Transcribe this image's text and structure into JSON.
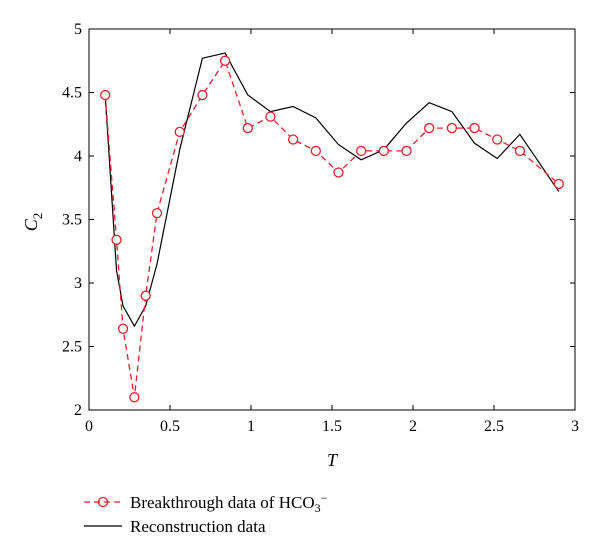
{
  "chart_data": {
    "type": "line",
    "title": "",
    "xlabel": "T",
    "ylabel": "C",
    "ylabel_subscript": "2",
    "xlim": [
      0,
      3
    ],
    "ylim": [
      2,
      5
    ],
    "x_ticks": [
      0,
      0.5,
      1,
      1.5,
      2,
      2.5,
      3
    ],
    "x_tick_labels": [
      "0",
      "0.5",
      "1",
      "1.5",
      "2",
      "2.5",
      "3"
    ],
    "y_ticks": [
      2,
      2.5,
      3,
      3.5,
      4,
      4.5,
      5
    ],
    "y_tick_labels": [
      "2",
      "2.5",
      "3",
      "3.5",
      "4",
      "4.5",
      "5"
    ],
    "grid": false,
    "legend_placement": "bottom-left-outside",
    "series": [
      {
        "name": "Breakthrough data of HCO",
        "name_sub": "3",
        "name_sup": "−",
        "style": "dashed-circle",
        "color": "#e8202a",
        "x": [
          0.1,
          0.17,
          0.21,
          0.28,
          0.35,
          0.42,
          0.56,
          0.7,
          0.84,
          0.98,
          1.12,
          1.26,
          1.4,
          1.54,
          1.68,
          1.82,
          1.96,
          2.1,
          2.24,
          2.38,
          2.52,
          2.66,
          2.9
        ],
        "y": [
          4.48,
          3.34,
          2.64,
          2.1,
          2.9,
          3.55,
          4.19,
          4.48,
          4.75,
          4.22,
          4.31,
          4.13,
          4.04,
          3.87,
          4.04,
          4.04,
          4.04,
          4.22,
          4.22,
          4.22,
          4.13,
          4.04,
          3.78
        ]
      },
      {
        "name": "Reconstruction data",
        "style": "solid",
        "color": "#000000",
        "x": [
          0.1,
          0.17,
          0.21,
          0.28,
          0.35,
          0.42,
          0.56,
          0.7,
          0.84,
          0.98,
          1.12,
          1.26,
          1.4,
          1.54,
          1.68,
          1.82,
          1.96,
          2.1,
          2.24,
          2.38,
          2.52,
          2.66,
          2.9
        ],
        "y": [
          4.48,
          3.1,
          2.82,
          2.66,
          2.82,
          3.15,
          4.05,
          4.77,
          4.81,
          4.48,
          4.35,
          4.39,
          4.3,
          4.09,
          3.97,
          4.05,
          4.26,
          4.42,
          4.35,
          4.1,
          3.98,
          4.17,
          3.72
        ]
      }
    ]
  }
}
